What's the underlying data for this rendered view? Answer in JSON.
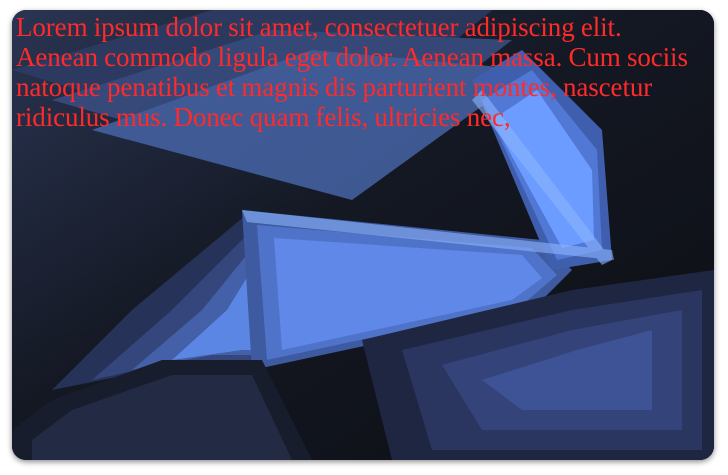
{
  "caption": {
    "text": "Lorem ipsum dolor sit amet, consectetuer adipiscing elit. Aenean commodo ligula eget dolor. Aenean massa. Cum sociis natoque penatibus et magnis dis parturient montes, nascetur ridiculus mus. Donec quam felis, ultricies nec,",
    "color": "#ff2a2a"
  },
  "artwork": {
    "background_color": "#101217",
    "accent_color": "#5b8cff",
    "description": "abstract blue layered fan shapes"
  }
}
